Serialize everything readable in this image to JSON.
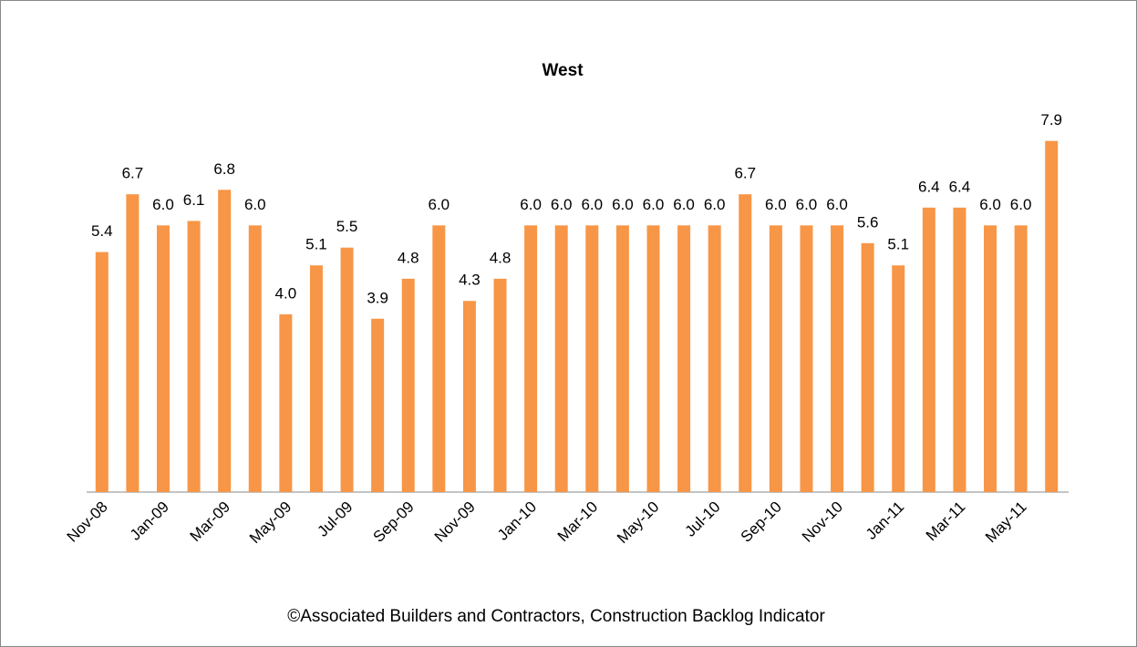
{
  "chart_data": {
    "type": "bar",
    "title": "West",
    "categories": [
      "Nov-08",
      null,
      "Jan-09",
      null,
      "Mar-09",
      null,
      "May-09",
      null,
      "Jul-09",
      null,
      "Sep-09",
      null,
      "Nov-09",
      null,
      "Jan-10",
      null,
      "Mar-10",
      null,
      "May-10",
      null,
      "Jul-10",
      null,
      "Sep-10",
      null,
      "Nov-10",
      null,
      "Jan-11",
      null,
      "Mar-11",
      null,
      "May-11",
      null
    ],
    "values": [
      5.4,
      6.7,
      6.0,
      6.1,
      6.8,
      6.0,
      4.0,
      5.1,
      5.5,
      3.9,
      4.8,
      6.0,
      4.3,
      4.8,
      6.0,
      6.0,
      6.0,
      6.0,
      6.0,
      6.0,
      6.0,
      6.7,
      6.0,
      6.0,
      6.0,
      5.6,
      5.1,
      6.4,
      6.4,
      6.0,
      6.0,
      7.9
    ],
    "value_labels": [
      "5.4",
      "6.7",
      "6.0",
      "6.1",
      "6.8",
      "6.0",
      "4.0",
      "5.1",
      "5.5",
      "3.9",
      "4.8",
      "6.0",
      "4.3",
      "4.8",
      "6.0",
      "6.0",
      "6.0",
      "6.0",
      "6.0",
      "6.0",
      "6.0",
      "6.7",
      "6.0",
      "6.0",
      "6.0",
      "5.6",
      "5.1",
      "6.4",
      "6.4",
      "6.0",
      "6.0",
      "7.9"
    ],
    "color": "#f79646",
    "ylim": [
      0,
      9
    ],
    "source": "©Associated Builders and Contractors, Construction Backlog Indicator"
  }
}
